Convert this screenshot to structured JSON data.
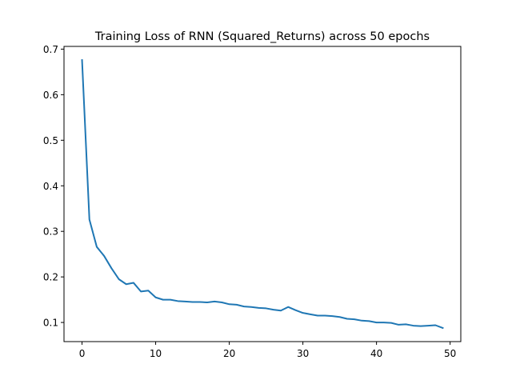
{
  "chart_data": {
    "type": "line",
    "title": "Training Loss of RNN (Squared_Returns) across 50 epochs",
    "xlabel": "",
    "ylabel": "",
    "xlim": [
      -2.45,
      51.45
    ],
    "ylim": [
      0.058,
      0.706
    ],
    "x_ticks": [
      0,
      10,
      20,
      30,
      40,
      50
    ],
    "y_ticks": [
      0.1,
      0.2,
      0.3,
      0.4,
      0.5,
      0.6,
      0.7
    ],
    "grid": false,
    "legend": "none",
    "series": [
      {
        "color": "#1f77b4",
        "x": [
          0,
          1,
          2,
          3,
          4,
          5,
          6,
          7,
          8,
          9,
          10,
          11,
          12,
          13,
          14,
          15,
          16,
          17,
          18,
          19,
          20,
          21,
          22,
          23,
          24,
          25,
          26,
          27,
          28,
          29,
          30,
          31,
          32,
          33,
          34,
          35,
          36,
          37,
          38,
          39,
          40,
          41,
          42,
          43,
          44,
          45,
          46,
          47,
          48,
          49
        ],
        "values": [
          0.676,
          0.326,
          0.266,
          0.246,
          0.219,
          0.195,
          0.184,
          0.187,
          0.168,
          0.17,
          0.155,
          0.15,
          0.15,
          0.147,
          0.146,
          0.145,
          0.145,
          0.144,
          0.146,
          0.144,
          0.14,
          0.139,
          0.135,
          0.134,
          0.132,
          0.131,
          0.128,
          0.126,
          0.134,
          0.127,
          0.121,
          0.118,
          0.115,
          0.115,
          0.114,
          0.112,
          0.108,
          0.107,
          0.104,
          0.103,
          0.1,
          0.1,
          0.099,
          0.095,
          0.096,
          0.093,
          0.092,
          0.093,
          0.094,
          0.088
        ]
      }
    ]
  }
}
